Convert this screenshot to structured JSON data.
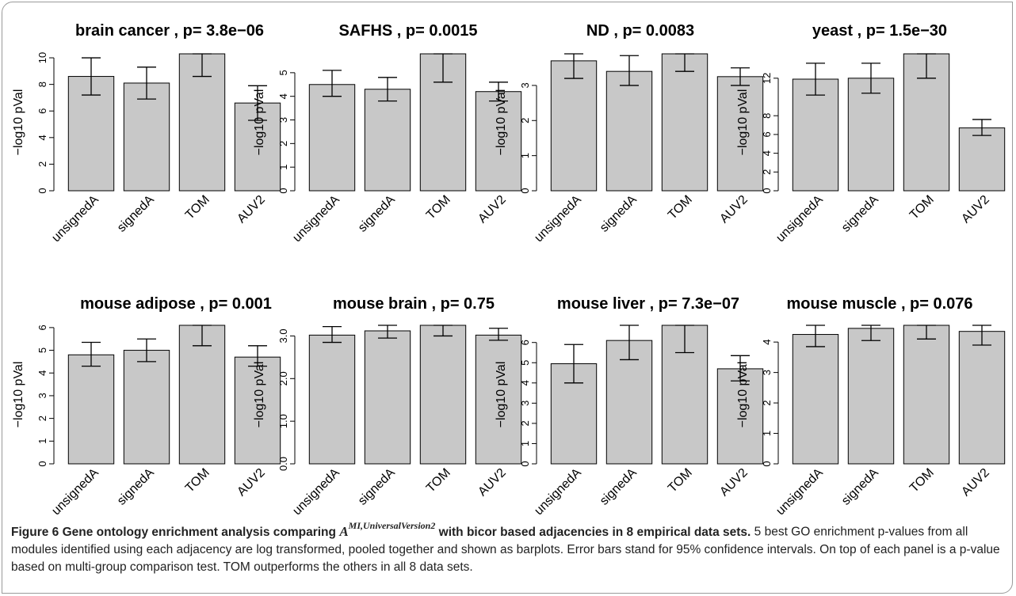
{
  "chart_data": [
    {
      "type": "bar",
      "title": "brain cancer ,  p= 3.8e−06",
      "ylabel": "−log10 pVal",
      "categories": [
        "unsignedA",
        "signedA",
        "TOM",
        "AUV2"
      ],
      "values": [
        8.6,
        8.1,
        10.3,
        6.6
      ],
      "error_lower": [
        7.2,
        6.9,
        8.6,
        5.3
      ],
      "error_upper": [
        10.0,
        9.3,
        10.3,
        7.9
      ],
      "yticks": [
        "0",
        "2",
        "4",
        "6",
        "8",
        "10"
      ],
      "ylim": [
        0,
        10.3
      ]
    },
    {
      "type": "bar",
      "title": "SAFHS ,  p= 0.0015",
      "ylabel": "−log10 pVal",
      "categories": [
        "unsignedA",
        "signedA",
        "TOM",
        "AUV2"
      ],
      "values": [
        4.5,
        4.3,
        5.8,
        4.2
      ],
      "error_lower": [
        4.0,
        3.8,
        4.6,
        3.8
      ],
      "error_upper": [
        5.1,
        4.8,
        5.8,
        4.6
      ],
      "yticks": [
        "0",
        "1",
        "2",
        "3",
        "4",
        "5"
      ],
      "ylim": [
        0,
        5.8
      ]
    },
    {
      "type": "bar",
      "title": "ND ,  p= 0.0083",
      "ylabel": "−log10 pVal",
      "categories": [
        "unsignedA",
        "signedA",
        "TOM",
        "AUV2"
      ],
      "values": [
        3.7,
        3.4,
        3.9,
        3.25
      ],
      "error_lower": [
        3.2,
        3.0,
        3.4,
        3.0
      ],
      "error_upper": [
        3.9,
        3.85,
        3.9,
        3.5
      ],
      "yticks": [
        "0",
        "1",
        "2",
        "3"
      ],
      "ylim": [
        0,
        3.9
      ]
    },
    {
      "type": "bar",
      "title": "yeast ,  p= 1.5e−30",
      "ylabel": "−log10 pVal",
      "categories": [
        "unsignedA",
        "signedA",
        "TOM",
        "AUV2"
      ],
      "values": [
        11.9,
        12.0,
        14.6,
        6.7
      ],
      "error_lower": [
        10.2,
        10.4,
        12.0,
        5.9
      ],
      "error_upper": [
        13.6,
        13.6,
        14.6,
        7.6
      ],
      "yticks": [
        "0",
        "2",
        "4",
        "6",
        "8",
        "12"
      ],
      "ylim": [
        0,
        14.6
      ]
    },
    {
      "type": "bar",
      "title": "mouse adipose ,  p= 0.001",
      "ylabel": "−log10 pVal",
      "categories": [
        "unsignedA",
        "signedA",
        "TOM",
        "AUV2"
      ],
      "values": [
        4.8,
        5.0,
        6.1,
        4.7
      ],
      "error_lower": [
        4.3,
        4.5,
        5.2,
        4.3
      ],
      "error_upper": [
        5.35,
        5.5,
        6.1,
        5.2
      ],
      "yticks": [
        "0",
        "1",
        "2",
        "3",
        "4",
        "5",
        "6"
      ],
      "ylim": [
        0,
        6.1
      ]
    },
    {
      "type": "bar",
      "title": "mouse brain ,  p= 0.75",
      "ylabel": "−log10 pVal",
      "categories": [
        "unsignedA",
        "signedA",
        "TOM",
        "AUV2"
      ],
      "values": [
        3.02,
        3.12,
        3.25,
        3.02
      ],
      "error_lower": [
        2.85,
        2.95,
        3.0,
        2.9
      ],
      "error_upper": [
        3.22,
        3.25,
        3.25,
        3.18
      ],
      "yticks": [
        "0.0",
        "1.0",
        "2.0",
        "3.0"
      ],
      "ylim": [
        0,
        3.25
      ]
    },
    {
      "type": "bar",
      "title": "mouse liver ,  p= 7.3e−07",
      "ylabel": "−log10 pVal",
      "categories": [
        "unsignedA",
        "signedA",
        "TOM",
        "AUV2"
      ],
      "values": [
        4.95,
        6.1,
        6.85,
        4.7
      ],
      "error_lower": [
        4.0,
        5.15,
        5.5,
        4.1
      ],
      "error_upper": [
        5.9,
        6.85,
        6.85,
        5.35
      ],
      "yticks": [
        "0",
        "1",
        "2",
        "3",
        "4",
        "5",
        "6"
      ],
      "ylim": [
        0,
        6.85
      ]
    },
    {
      "type": "bar",
      "title": "mouse muscle ,  p= 0.076",
      "ylabel": "−log10 pVal",
      "categories": [
        "unsignedA",
        "signedA",
        "TOM",
        "AUV2"
      ],
      "values": [
        4.25,
        4.45,
        4.55,
        4.35
      ],
      "error_lower": [
        3.85,
        4.05,
        4.1,
        3.9
      ],
      "error_upper": [
        4.55,
        4.55,
        4.55,
        4.55
      ],
      "yticks": [
        "0",
        "1",
        "2",
        "3",
        "4"
      ],
      "ylim": [
        0,
        4.55
      ]
    }
  ],
  "caption": {
    "figure_label": "Figure 6",
    "title_before": "Gene ontology enrichment analysis comparing ",
    "math_base": "A",
    "math_sup": "MI,UniversalVersion2",
    "title_after": " with bicor based adjacencies in 8 empirical data sets.",
    "body": " 5 best GO enrichment p-values from all modules identified using each adjacency are log transformed, pooled together and shown as barplots. Error bars stand for 95% confidence intervals. On top of each panel is a p-value based on multi-group comparison test. TOM outperforms the others in all 8 data sets."
  },
  "colors": {
    "bar_fill": "#c8c8c8",
    "bar_stroke": "#000000",
    "frame": "#9a9a9a"
  }
}
